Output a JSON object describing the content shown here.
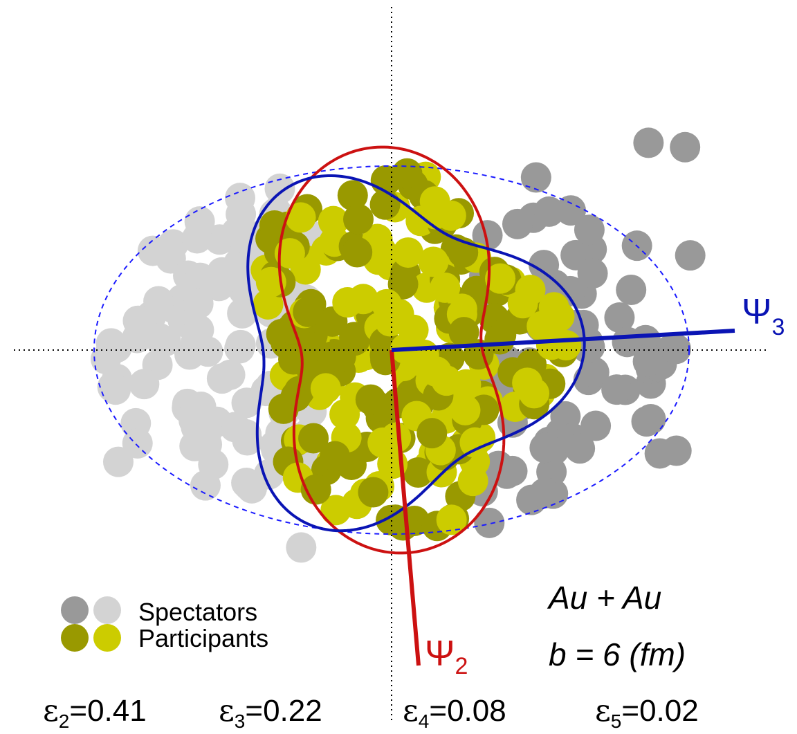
{
  "legend": {
    "spectators": "Spectators",
    "participants": "Participants"
  },
  "system": {
    "collision": "Au + Au",
    "impact_parameter": "b = 6 (fm)"
  },
  "planes": [
    {
      "symbol": "Ψ",
      "index": "2"
    },
    {
      "symbol": "Ψ",
      "index": "3"
    }
  ],
  "eccentricities": [
    {
      "symbol": "ε",
      "index": "2",
      "text": "=0.41"
    },
    {
      "symbol": "ε",
      "index": "3",
      "text": "=0.22"
    },
    {
      "symbol": "ε",
      "index": "4",
      "text": "=0.08"
    },
    {
      "symbol": "ε",
      "index": "5",
      "text": "=0.02"
    }
  ]
}
